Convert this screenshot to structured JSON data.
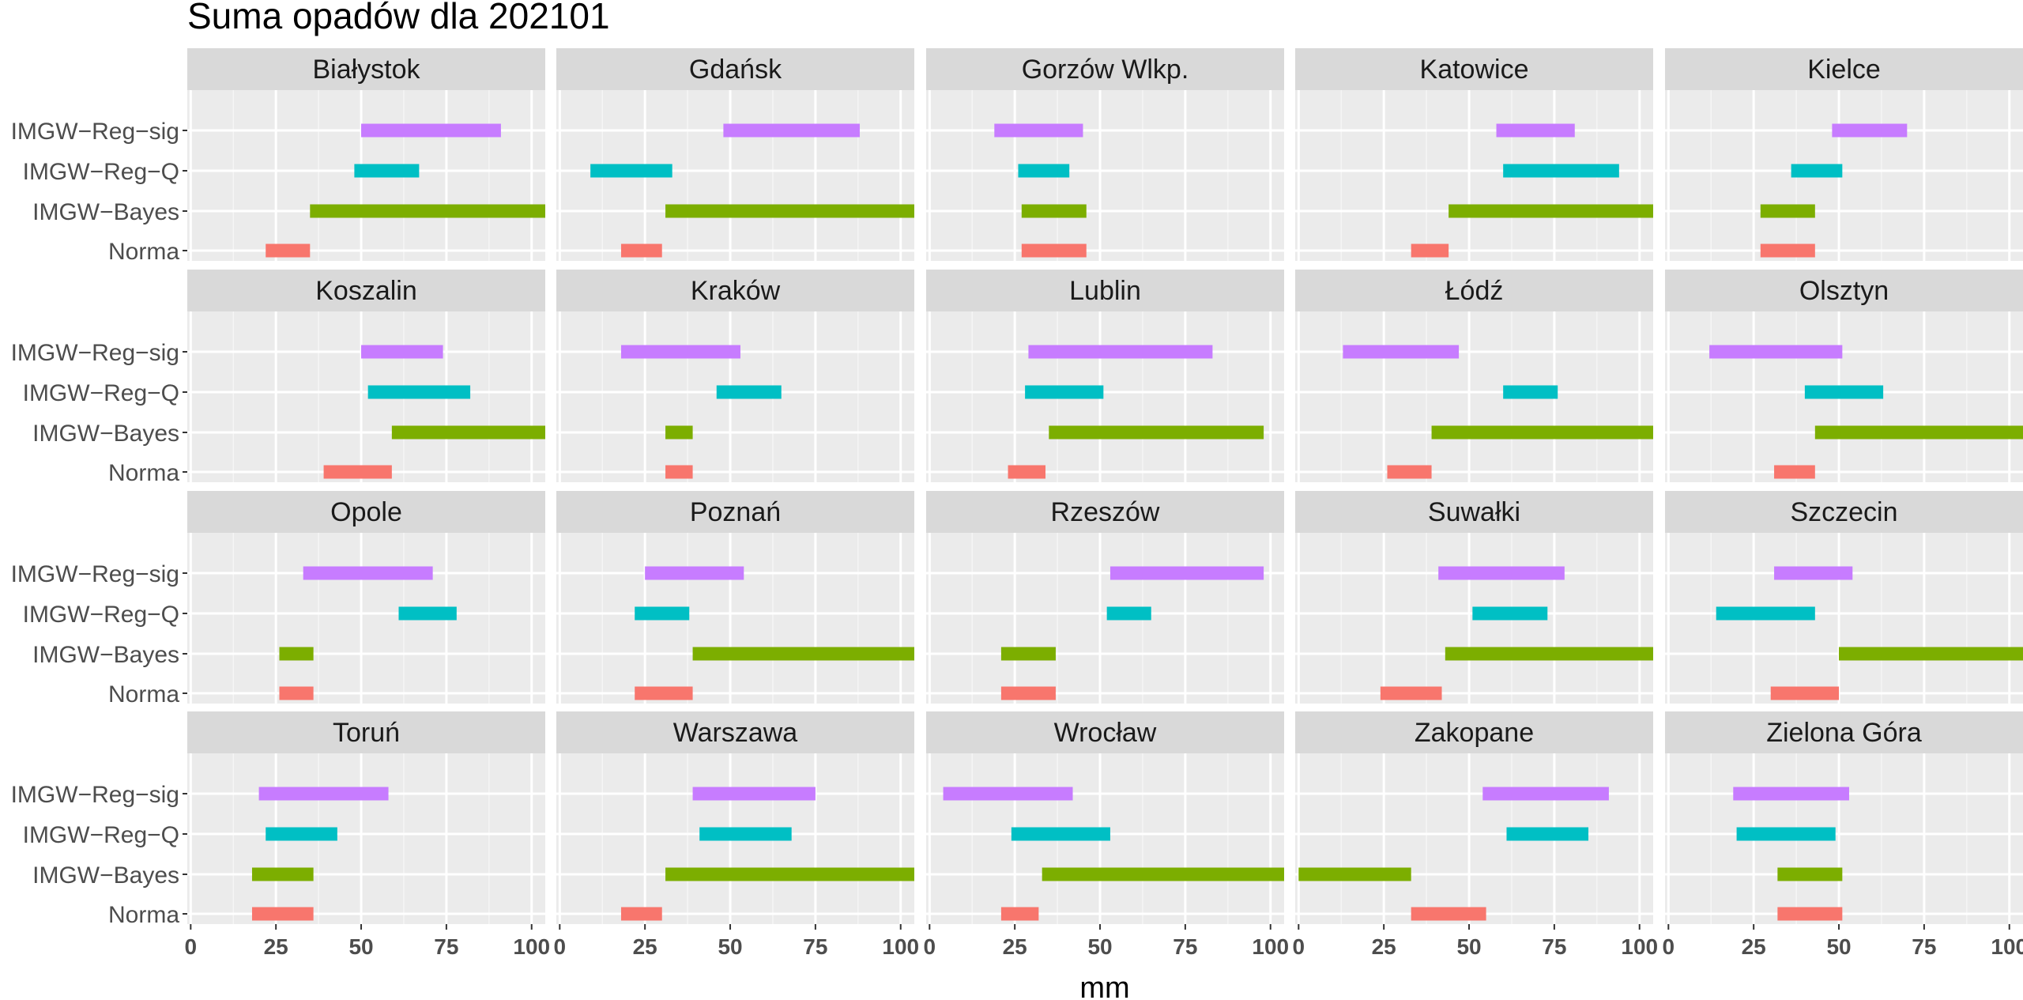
{
  "chart_data": {
    "type": "range-bar",
    "title": "Suma opadów dla 202101",
    "xlabel": "mm",
    "ylabel": "",
    "xlim": [
      -1,
      104
    ],
    "x_ticks": [
      0,
      25,
      50,
      75,
      100
    ],
    "x_tick_labels": [
      "0",
      "25",
      "50",
      "75",
      "100"
    ],
    "categories": [
      "IMGW−Reg−sig",
      "IMGW−Reg−Q",
      "IMGW−Bayes",
      "Norma"
    ],
    "colors": {
      "IMGW−Reg−sig": "#C77CFF",
      "IMGW−Reg−Q": "#00BFC4",
      "IMGW−Bayes": "#7CAE00",
      "Norma": "#F8766D"
    },
    "grid": true,
    "panel_background": "#EBEBEB",
    "strip_background": "#D9D9D9",
    "panels": [
      {
        "name": "Białystok",
        "ranges": [
          [
            50,
            91
          ],
          [
            48,
            67
          ],
          [
            35,
            104
          ],
          [
            22,
            35
          ]
        ]
      },
      {
        "name": "Gdańsk",
        "ranges": [
          [
            48,
            88
          ],
          [
            9,
            33
          ],
          [
            31,
            104
          ],
          [
            18,
            30
          ]
        ]
      },
      {
        "name": "Gorzów Wlkp.",
        "ranges": [
          [
            19,
            45
          ],
          [
            26,
            41
          ],
          [
            27,
            46
          ],
          [
            27,
            46
          ]
        ]
      },
      {
        "name": "Katowice",
        "ranges": [
          [
            58,
            81
          ],
          [
            60,
            94
          ],
          [
            44,
            104
          ],
          [
            33,
            44
          ]
        ]
      },
      {
        "name": "Kielce",
        "ranges": [
          [
            48,
            70
          ],
          [
            36,
            51
          ],
          [
            27,
            43
          ],
          [
            27,
            43
          ]
        ]
      },
      {
        "name": "Koszalin",
        "ranges": [
          [
            50,
            74
          ],
          [
            52,
            82
          ],
          [
            59,
            104
          ],
          [
            39,
            59
          ]
        ]
      },
      {
        "name": "Kraków",
        "ranges": [
          [
            18,
            53
          ],
          [
            46,
            65
          ],
          [
            31,
            39
          ],
          [
            31,
            39
          ]
        ]
      },
      {
        "name": "Lublin",
        "ranges": [
          [
            29,
            83
          ],
          [
            28,
            51
          ],
          [
            35,
            98
          ],
          [
            23,
            34
          ]
        ]
      },
      {
        "name": "Łódź",
        "ranges": [
          [
            13,
            47
          ],
          [
            60,
            76
          ],
          [
            39,
            104
          ],
          [
            26,
            39
          ]
        ]
      },
      {
        "name": "Olsztyn",
        "ranges": [
          [
            12,
            51
          ],
          [
            40,
            63
          ],
          [
            43,
            104
          ],
          [
            31,
            43
          ]
        ]
      },
      {
        "name": "Opole",
        "ranges": [
          [
            33,
            71
          ],
          [
            61,
            78
          ],
          [
            26,
            36
          ],
          [
            26,
            36
          ]
        ]
      },
      {
        "name": "Poznań",
        "ranges": [
          [
            25,
            54
          ],
          [
            22,
            38
          ],
          [
            39,
            104
          ],
          [
            22,
            39
          ]
        ]
      },
      {
        "name": "Rzeszów",
        "ranges": [
          [
            53,
            98
          ],
          [
            52,
            65
          ],
          [
            21,
            37
          ],
          [
            21,
            37
          ]
        ]
      },
      {
        "name": "Suwałki",
        "ranges": [
          [
            41,
            78
          ],
          [
            51,
            73
          ],
          [
            43,
            104
          ],
          [
            24,
            42
          ]
        ]
      },
      {
        "name": "Szczecin",
        "ranges": [
          [
            31,
            54
          ],
          [
            14,
            43
          ],
          [
            50,
            104
          ],
          [
            30,
            50
          ]
        ]
      },
      {
        "name": "Toruń",
        "ranges": [
          [
            20,
            58
          ],
          [
            22,
            43
          ],
          [
            18,
            36
          ],
          [
            18,
            36
          ]
        ]
      },
      {
        "name": "Warszawa",
        "ranges": [
          [
            39,
            75
          ],
          [
            41,
            68
          ],
          [
            31,
            104
          ],
          [
            18,
            30
          ]
        ]
      },
      {
        "name": "Wrocław",
        "ranges": [
          [
            4,
            42
          ],
          [
            24,
            53
          ],
          [
            33,
            104
          ],
          [
            21,
            32
          ]
        ]
      },
      {
        "name": "Zakopane",
        "ranges": [
          [
            54,
            91
          ],
          [
            61,
            85
          ],
          [
            0,
            33
          ],
          [
            33,
            55
          ]
        ]
      },
      {
        "name": "Zielona Góra",
        "ranges": [
          [
            19,
            53
          ],
          [
            20,
            49
          ],
          [
            32,
            51
          ],
          [
            32,
            51
          ]
        ]
      }
    ]
  }
}
